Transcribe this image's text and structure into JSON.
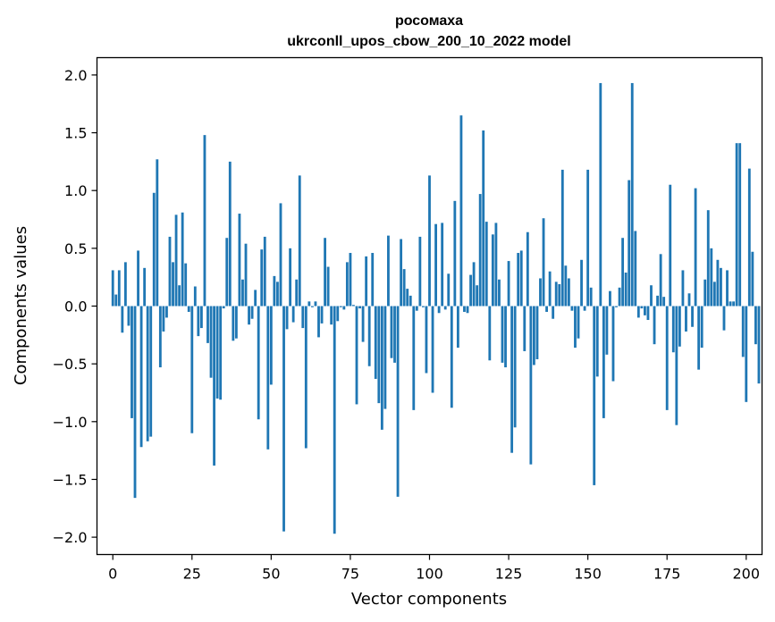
{
  "chart_data": {
    "type": "bar",
    "title": "росомаха",
    "subtitle": "ukrconll_upos_cbow_200_10_2022 model",
    "xlabel": "Vector components",
    "ylabel": "Components values",
    "xlim": [
      -5,
      205
    ],
    "ylim": [
      -2.15,
      2.15
    ],
    "xticks": [
      0,
      25,
      50,
      75,
      100,
      125,
      150,
      175,
      200
    ],
    "yticks": [
      -2.0,
      -1.5,
      -1.0,
      -0.5,
      0.0,
      0.5,
      1.0,
      1.5,
      2.0
    ],
    "ytick_labels": [
      "−2.0",
      "−1.5",
      "−1.0",
      "−0.5",
      "0.0",
      "0.5",
      "1.0",
      "1.5",
      "2.0"
    ],
    "bar_color": "#1f77b4",
    "grid": false,
    "values": [
      0.31,
      0.1,
      0.31,
      -0.23,
      0.38,
      -0.17,
      -0.97,
      -1.66,
      0.48,
      -1.22,
      0.33,
      -1.17,
      -1.13,
      0.98,
      1.27,
      -0.53,
      -0.22,
      -0.1,
      0.6,
      0.38,
      0.79,
      0.18,
      0.81,
      0.37,
      -0.05,
      -1.1,
      0.17,
      -0.26,
      -0.19,
      1.48,
      -0.32,
      -0.62,
      -1.38,
      -0.8,
      -0.81,
      -0.02,
      0.59,
      1.25,
      -0.3,
      -0.28,
      0.8,
      0.23,
      0.54,
      -0.16,
      -0.11,
      0.14,
      -0.98,
      0.49,
      0.6,
      -1.24,
      -0.68,
      0.26,
      0.21,
      0.89,
      -1.95,
      -0.2,
      0.5,
      -0.14,
      0.23,
      1.13,
      -0.19,
      -1.23,
      0.04,
      -0.01,
      0.04,
      -0.27,
      -0.15,
      0.59,
      0.34,
      -0.16,
      -1.97,
      -0.13,
      -0.01,
      -0.03,
      0.38,
      0.46,
      0.01,
      -0.85,
      -0.02,
      -0.31,
      0.43,
      -0.52,
      0.46,
      -0.63,
      -0.84,
      -1.07,
      -0.89,
      0.61,
      -0.45,
      -0.49,
      -1.65,
      0.58,
      0.32,
      0.15,
      0.09,
      -0.9,
      -0.04,
      0.6,
      -0.01,
      -0.58,
      1.13,
      -0.75,
      0.71,
      -0.06,
      0.72,
      -0.03,
      0.28,
      -0.88,
      0.91,
      -0.36,
      1.65,
      -0.05,
      -0.06,
      0.27,
      0.38,
      0.18,
      0.97,
      1.52,
      0.73,
      -0.47,
      0.62,
      0.72,
      0.23,
      -0.49,
      -0.53,
      0.39,
      -1.27,
      -1.05,
      0.46,
      0.48,
      -0.39,
      0.64,
      -1.37,
      -0.51,
      -0.46,
      0.24,
      0.76,
      -0.05,
      0.3,
      -0.11,
      0.21,
      0.19,
      1.18,
      0.35,
      0.24,
      -0.04,
      -0.36,
      -0.28,
      0.4,
      -0.04,
      1.18,
      0.16,
      -1.55,
      -0.61,
      1.93,
      -0.97,
      -0.42,
      0.13,
      -0.65,
      -0.01,
      0.16,
      0.59,
      0.29,
      1.09,
      1.93,
      0.65,
      -0.1,
      -0.02,
      -0.08,
      -0.12,
      0.18,
      -0.33,
      0.09,
      0.45,
      0.08,
      -0.9,
      1.05,
      -0.4,
      -1.03,
      -0.35,
      0.31,
      -0.22,
      0.11,
      -0.18,
      1.02,
      -0.55,
      -0.36,
      0.23,
      0.83,
      0.5,
      0.21,
      0.4,
      0.33,
      -0.21,
      0.31,
      0.04,
      0.04,
      1.41,
      1.41,
      -0.44,
      -0.83,
      1.19,
      0.47,
      -0.33,
      -0.67
    ]
  }
}
